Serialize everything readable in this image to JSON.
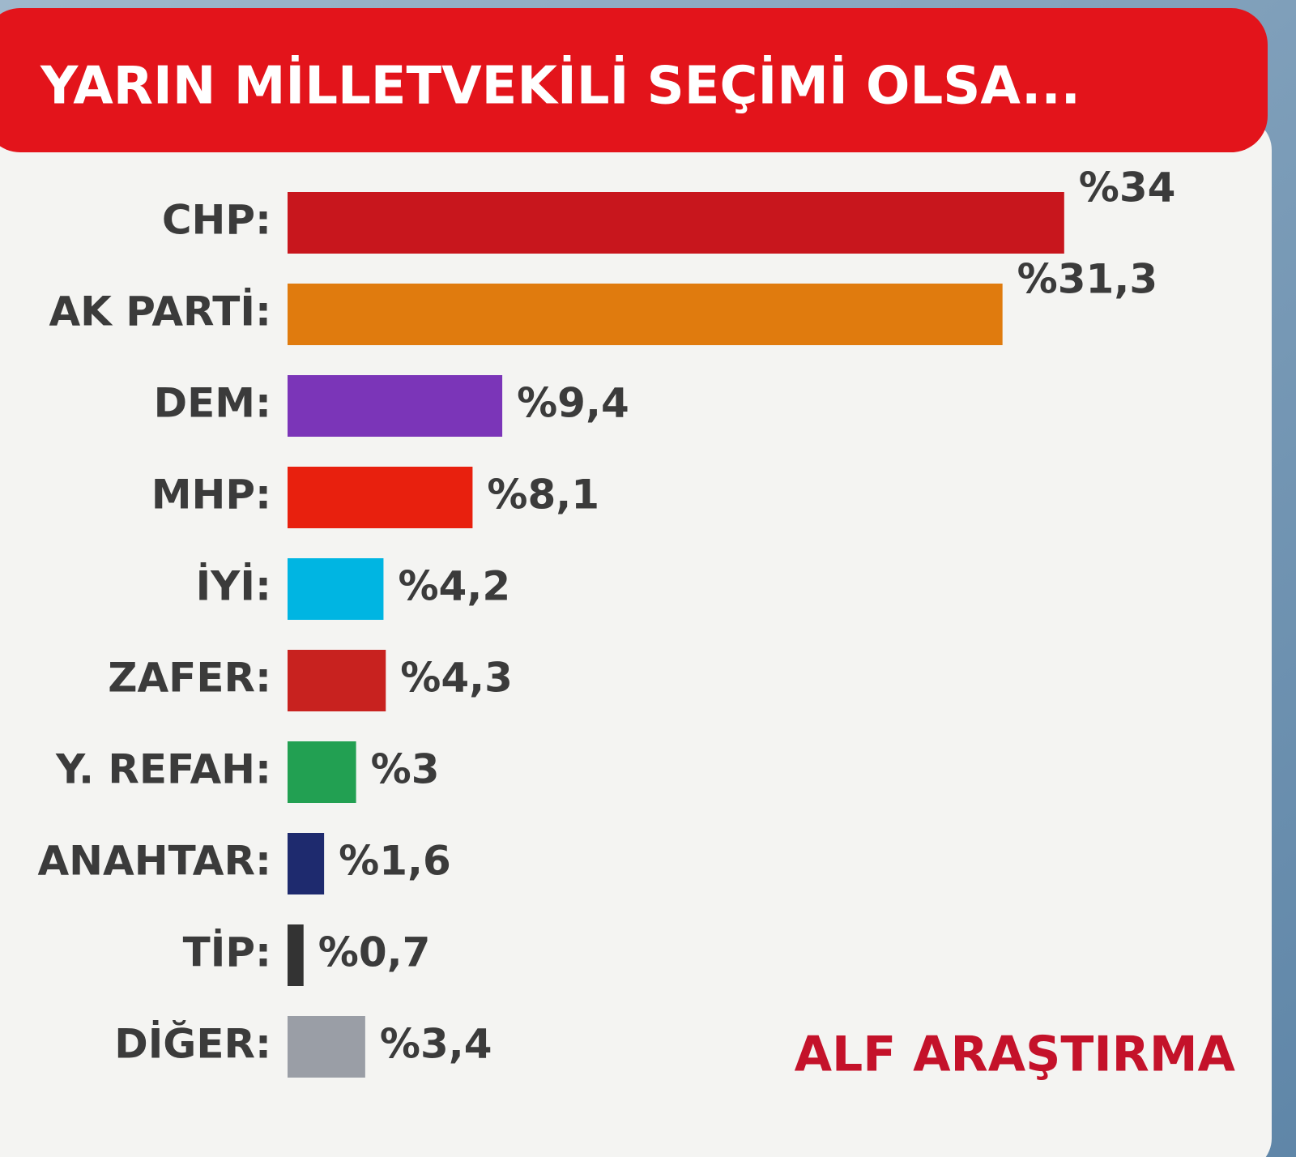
{
  "chart_data": {
    "type": "hbar",
    "title": "YARIN MİLLETVEKİLİ SEÇİMİ OLSA...",
    "categories": [
      "CHP:",
      "AK PARTİ:",
      "DEM:",
      "MHP:",
      "İYİ:",
      "ZAFER:",
      "Y. REFAH:",
      "ANAHTAR:",
      "TİP:",
      "DİĞER:"
    ],
    "values": [
      34,
      31.3,
      9.4,
      8.1,
      4.2,
      4.3,
      3,
      1.6,
      0.7,
      3.4
    ],
    "value_labels": [
      "%34",
      "%31,3",
      "%9,4",
      "%8,1",
      "%4,2",
      "%4,3",
      "%3",
      "%1,6",
      "%0,7",
      "%3,4"
    ],
    "colors": [
      "#c8161d",
      "#e07b0e",
      "#7b35b8",
      "#e8200e",
      "#00b5e2",
      "#c8221f",
      "#22a052",
      "#1e2a6e",
      "#333333",
      "#9a9ea6"
    ],
    "source": "ALF ARAŞTIRMA"
  }
}
